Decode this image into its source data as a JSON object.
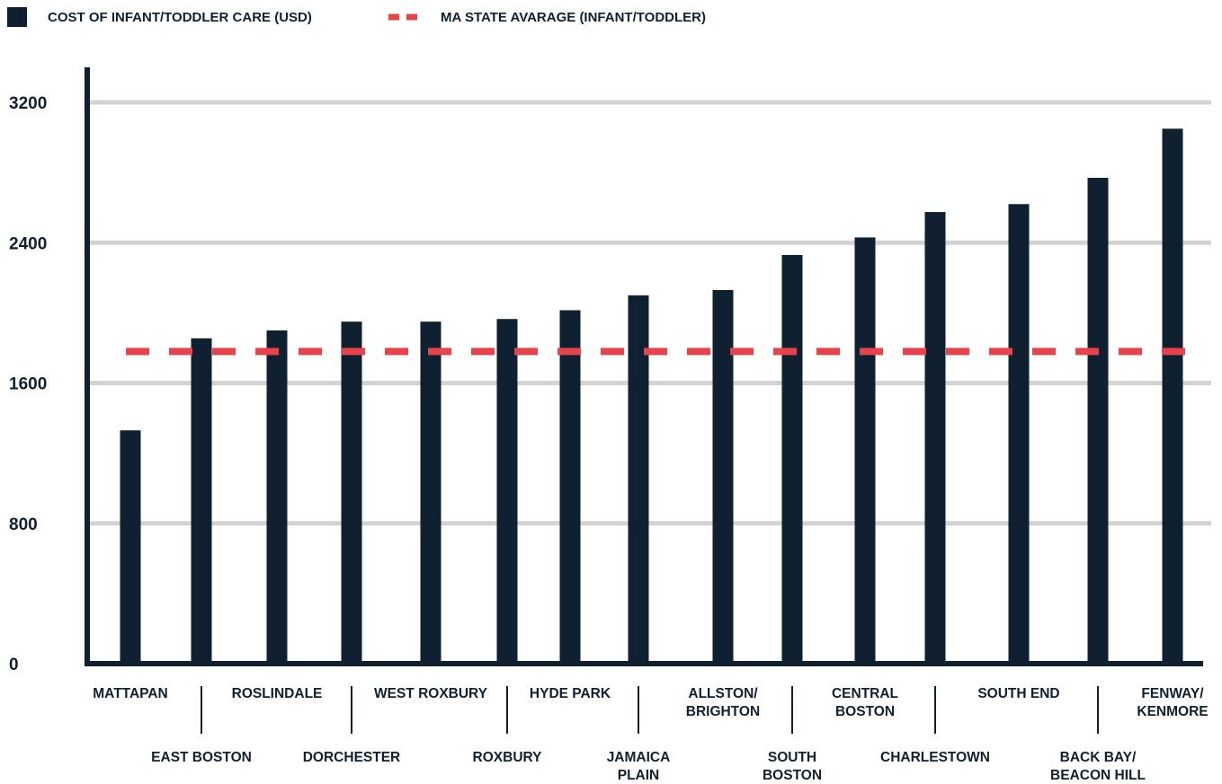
{
  "chart_data": {
    "type": "bar",
    "categories": [
      [
        "MATTAPAN"
      ],
      [
        "EAST BOSTON"
      ],
      [
        "ROSLINDALE"
      ],
      [
        "DORCHESTER"
      ],
      [
        "WEST ROXBURY"
      ],
      [
        "ROXBURY"
      ],
      [
        "HYDE PARK"
      ],
      [
        "JAMAICA",
        "PLAIN"
      ],
      [
        "ALLSTON/",
        "BRIGHTON"
      ],
      [
        "SOUTH",
        "BOSTON"
      ],
      [
        "CENTRAL",
        "BOSTON"
      ],
      [
        "CHARLESTOWN"
      ],
      [
        "SOUTH END"
      ],
      [
        "BACK BAY/",
        "BEACON HILL"
      ],
      [
        "FENWAY/",
        "KENMORE"
      ]
    ],
    "series": [
      {
        "name": "COST OF INFANT/TODDLER CARE (USD)",
        "values": [
          1330,
          1855,
          1900,
          1950,
          1950,
          1965,
          2015,
          2100,
          2130,
          2330,
          2430,
          2575,
          2620,
          2770,
          3050
        ]
      }
    ],
    "reference_line": {
      "name": "MA STATE AVARAGE (INFANT/TODDLER)",
      "value": 1780
    },
    "yticks": [
      "3200",
      "2400",
      "1600",
      "800",
      "0"
    ],
    "ytick_values": [
      3200,
      2400,
      1600,
      800,
      0
    ],
    "ylim": [
      0,
      3200
    ],
    "title": "",
    "xlabel": "",
    "ylabel": "",
    "grid": true,
    "legend_position": "top-left"
  },
  "colors": {
    "bar": "#0f2130",
    "reference": "#e8434a",
    "grid": "#d3d3d3",
    "axis": "#0f2130"
  }
}
